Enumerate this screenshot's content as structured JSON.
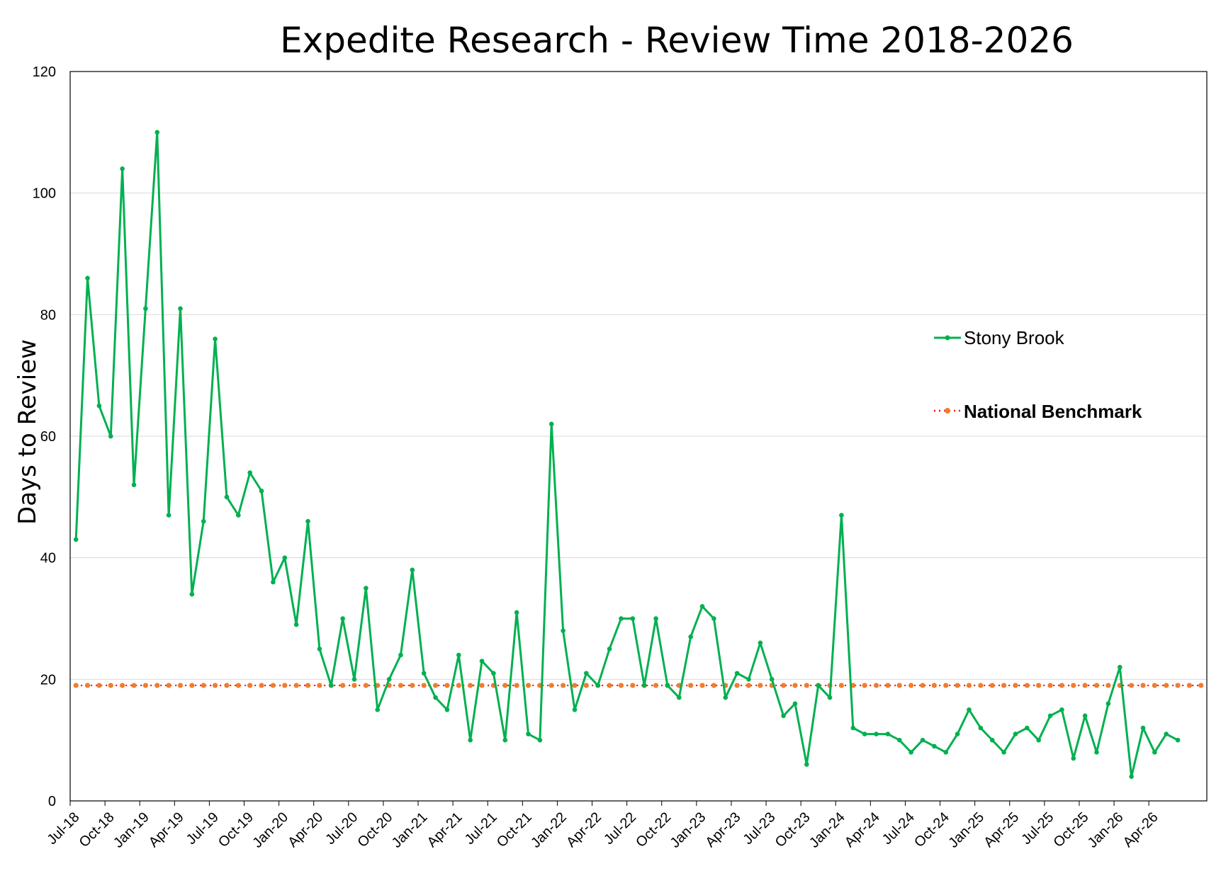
{
  "chart_data": {
    "type": "line",
    "title": "Expedite Research - Review Time 2018-2026",
    "xlabel": "",
    "ylabel": "Days to Review",
    "ylim": [
      0,
      120
    ],
    "yticks": [
      0,
      20,
      40,
      60,
      80,
      100,
      120
    ],
    "grid": "horizontal",
    "legend_position": "right",
    "xtick_labels": [
      "Jul-18",
      "Oct-18",
      "Jan-19",
      "Apr-19",
      "Jul-19",
      "Oct-19",
      "Jan-20",
      "Apr-20",
      "Jul-20",
      "Oct-20",
      "Jan-21",
      "Apr-21",
      "Jul-21",
      "Oct-21",
      "Jan-22",
      "Apr-22",
      "Jul-22",
      "Oct-22",
      "Jan-23",
      "Apr-23",
      "Jul-23",
      "Oct-23",
      "Jan-24",
      "Apr-24",
      "Jul-24",
      "Oct-24",
      "Jan-25",
      "Apr-25",
      "Jul-25",
      "Oct-25",
      "Jan-26",
      "Apr-26"
    ],
    "series": [
      {
        "name": "Stony Brook",
        "color": "#00b050",
        "style": "solid-with-markers",
        "values": [
          43,
          86,
          65,
          60,
          104,
          52,
          81,
          110,
          47,
          81,
          34,
          46,
          76,
          50,
          47,
          54,
          51,
          36,
          40,
          29,
          46,
          25,
          19,
          30,
          20,
          35,
          15,
          20,
          24,
          38,
          21,
          17,
          15,
          24,
          10,
          23,
          21,
          10,
          31,
          11,
          10,
          62,
          28,
          15,
          21,
          19,
          25,
          30,
          30,
          19,
          30,
          19,
          17,
          27,
          32,
          30,
          17,
          21,
          20,
          26,
          20,
          14,
          16,
          6,
          19,
          17,
          47,
          12,
          11,
          11,
          11,
          10,
          8,
          10,
          9,
          8,
          11,
          15,
          12,
          10,
          8,
          11,
          12,
          10,
          14,
          15,
          7,
          14,
          8,
          16,
          22,
          4,
          12,
          8,
          11,
          10
        ]
      },
      {
        "name": "National Benchmark",
        "color": "#ff0000",
        "marker_color": "#ed7d31",
        "style": "dotted-with-markers",
        "constant_value": 19
      }
    ]
  }
}
